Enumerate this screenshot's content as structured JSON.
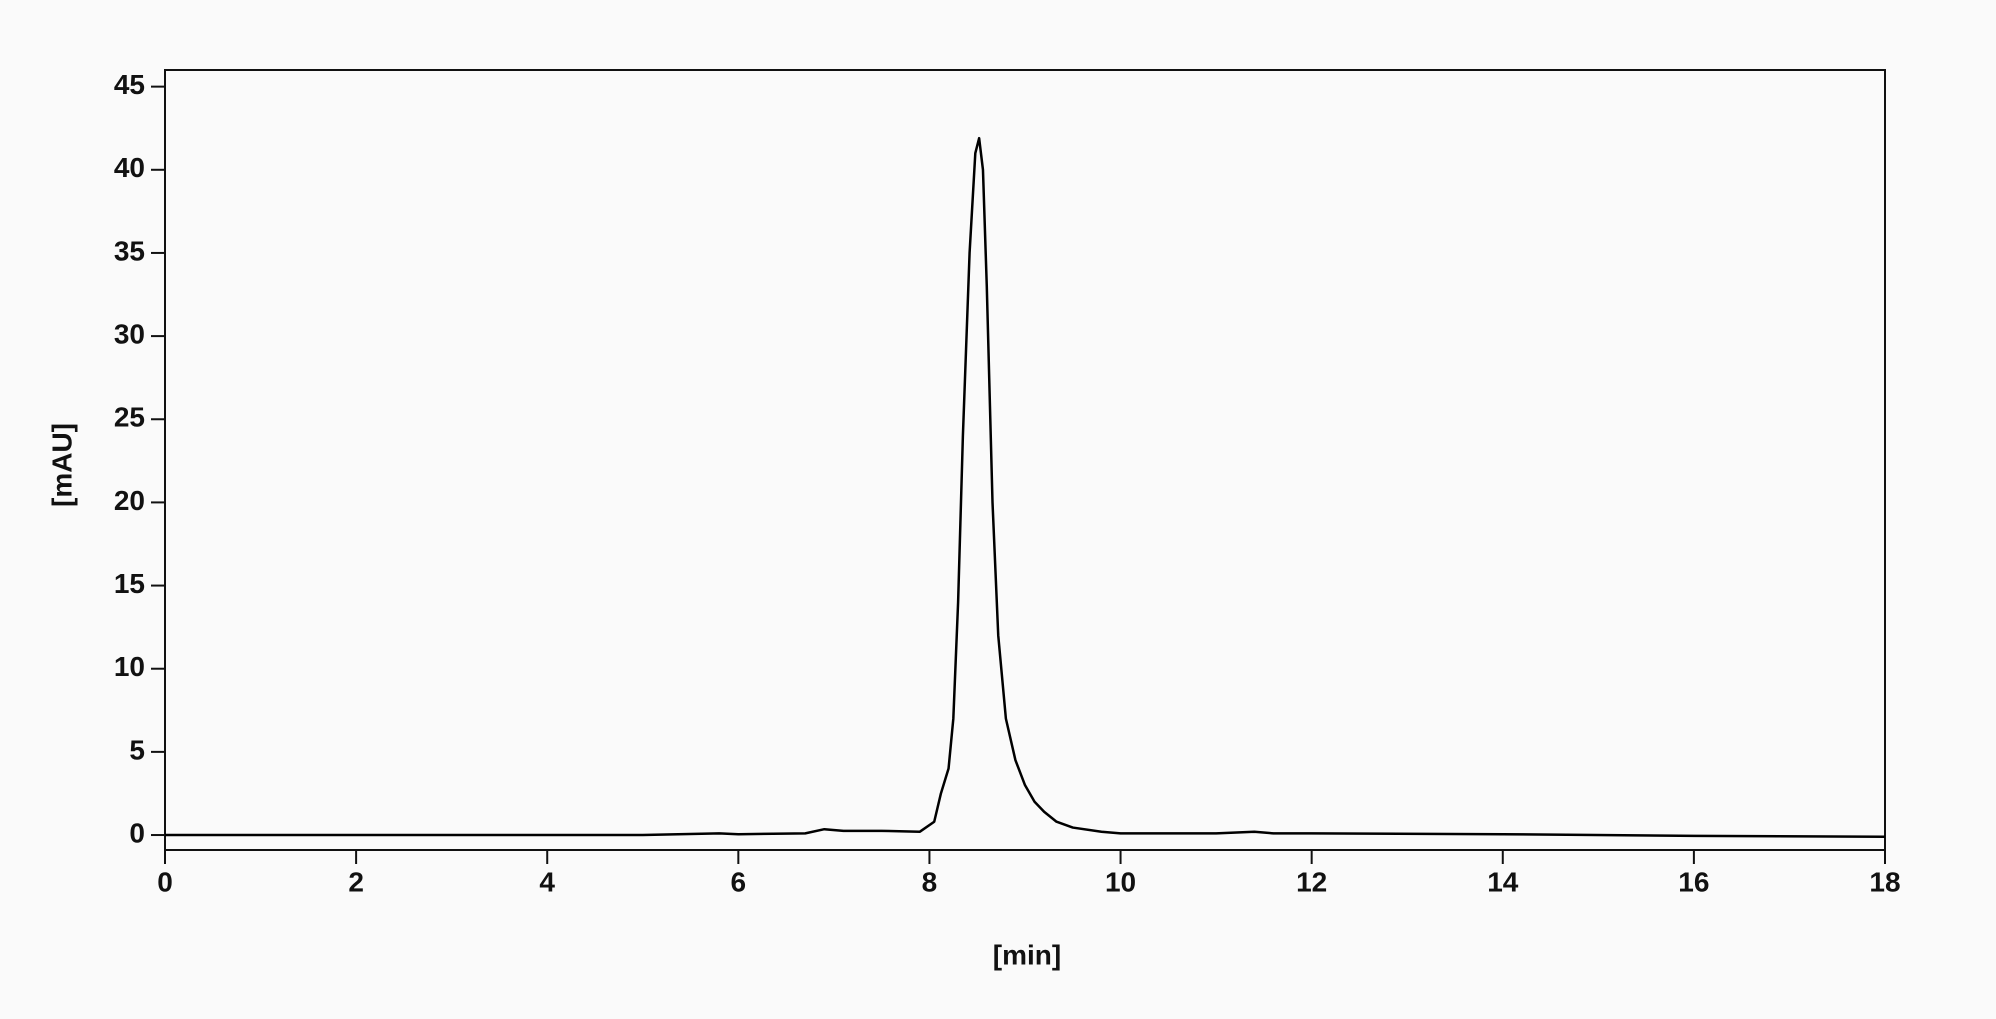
{
  "chart_data": {
    "type": "line",
    "xlabel": "[min]",
    "ylabel": "[mAU]",
    "x": [
      0,
      2,
      4,
      5,
      5.8,
      6,
      6.7,
      6.9,
      7.1,
      7.5,
      7.9,
      8.05,
      8.12,
      8.2,
      8.25,
      8.3,
      8.35,
      8.42,
      8.48,
      8.52,
      8.56,
      8.6,
      8.66,
      8.72,
      8.8,
      8.9,
      9.0,
      9.1,
      9.2,
      9.33,
      9.5,
      9.8,
      10,
      11,
      11.4,
      11.6,
      12,
      14,
      16,
      18
    ],
    "values": [
      0,
      0,
      0,
      0,
      0.1,
      0.05,
      0.1,
      0.35,
      0.25,
      0.25,
      0.2,
      0.8,
      2.5,
      4,
      7,
      14,
      24,
      35,
      41,
      41.9,
      40,
      33,
      20,
      12,
      7,
      4.5,
      3,
      2,
      1.4,
      0.8,
      0.45,
      0.2,
      0.1,
      0.1,
      0.2,
      0.1,
      0.1,
      0.05,
      -0.05,
      -0.1
    ],
    "color": "#000000",
    "xlim": [
      0,
      18
    ],
    "xticks": [
      0,
      2,
      4,
      6,
      8,
      10,
      12,
      14,
      16,
      18
    ],
    "ylim": [
      -0.9,
      46
    ],
    "yticks": [
      0,
      5,
      10,
      15,
      20,
      25,
      30,
      35,
      40,
      45
    ],
    "grid": false
  }
}
